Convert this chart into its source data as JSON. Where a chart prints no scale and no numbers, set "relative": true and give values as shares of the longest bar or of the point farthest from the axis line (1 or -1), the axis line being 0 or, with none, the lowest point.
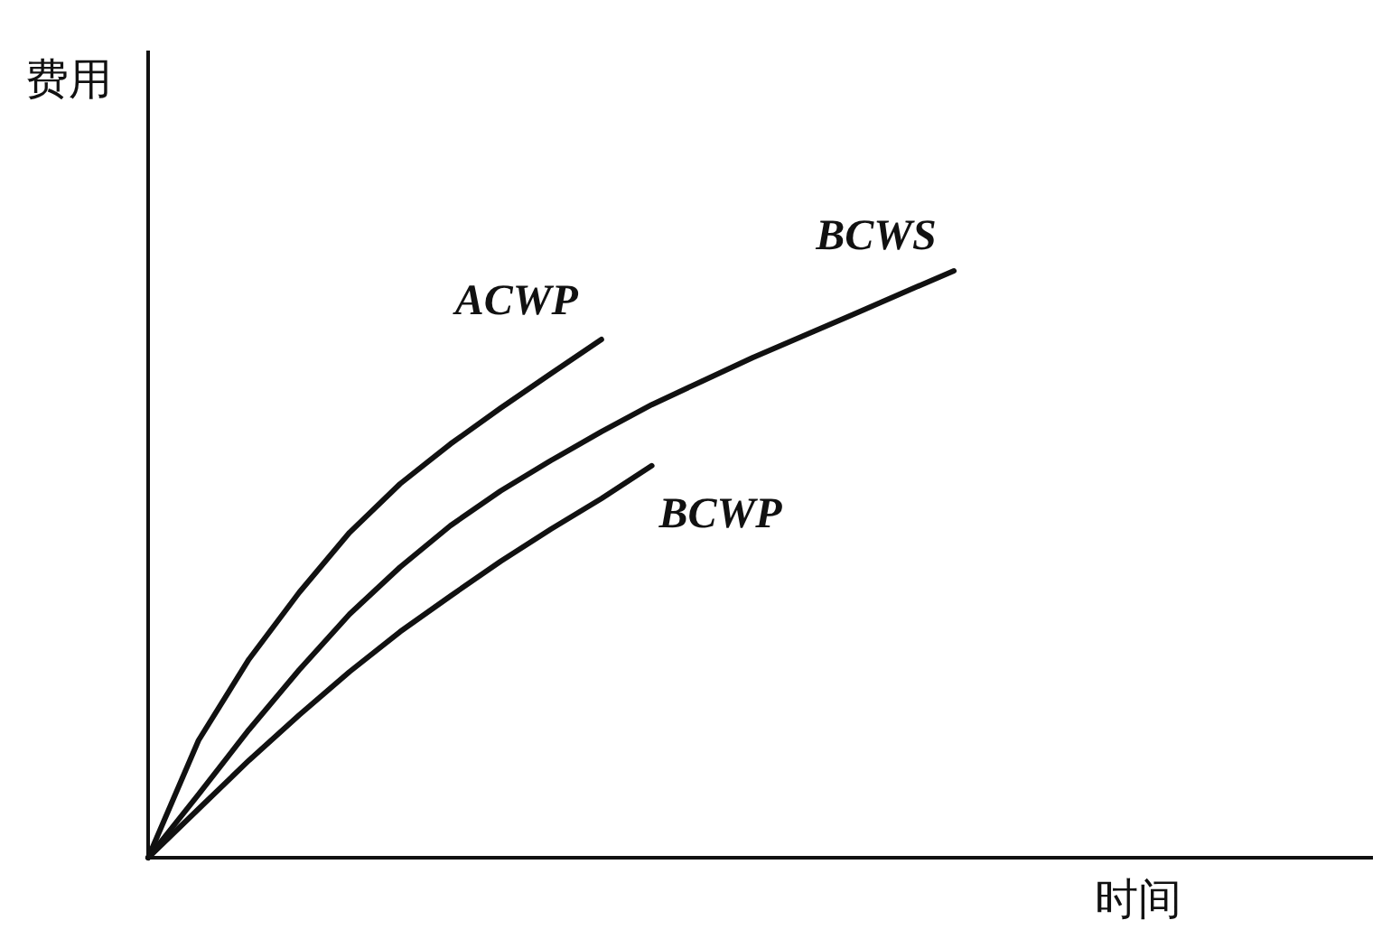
{
  "chart_data": {
    "type": "line",
    "relative": true,
    "xlabel": "时间",
    "ylabel": "费用",
    "line_style": "solid",
    "categories": [
      null,
      null,
      null,
      null,
      null,
      null,
      null,
      null,
      null,
      null,
      null,
      null,
      null,
      null,
      null,
      null,
      null
    ],
    "series": [
      {
        "name": "ACWP",
        "color": "#111111",
        "values": [
          0,
          0.2,
          0.338,
          0.452,
          0.554,
          0.637,
          0.705,
          0.766,
          0.825,
          0.883,
          null,
          null,
          null,
          null,
          null,
          null,
          null
        ]
      },
      {
        "name": "BCWS",
        "color": "#111111",
        "values": [
          0,
          0.108,
          0.218,
          0.32,
          0.415,
          0.495,
          0.566,
          0.625,
          0.677,
          0.726,
          0.772,
          0.812,
          0.852,
          0.889,
          0.926,
          0.963,
          1
        ]
      },
      {
        "name": "BCWP",
        "color": "#111111",
        "values": [
          0,
          0.083,
          0.166,
          0.243,
          0.317,
          0.385,
          0.446,
          0.505,
          0.56,
          0.612,
          0.668,
          null,
          null,
          null,
          null,
          null,
          null
        ]
      }
    ]
  }
}
